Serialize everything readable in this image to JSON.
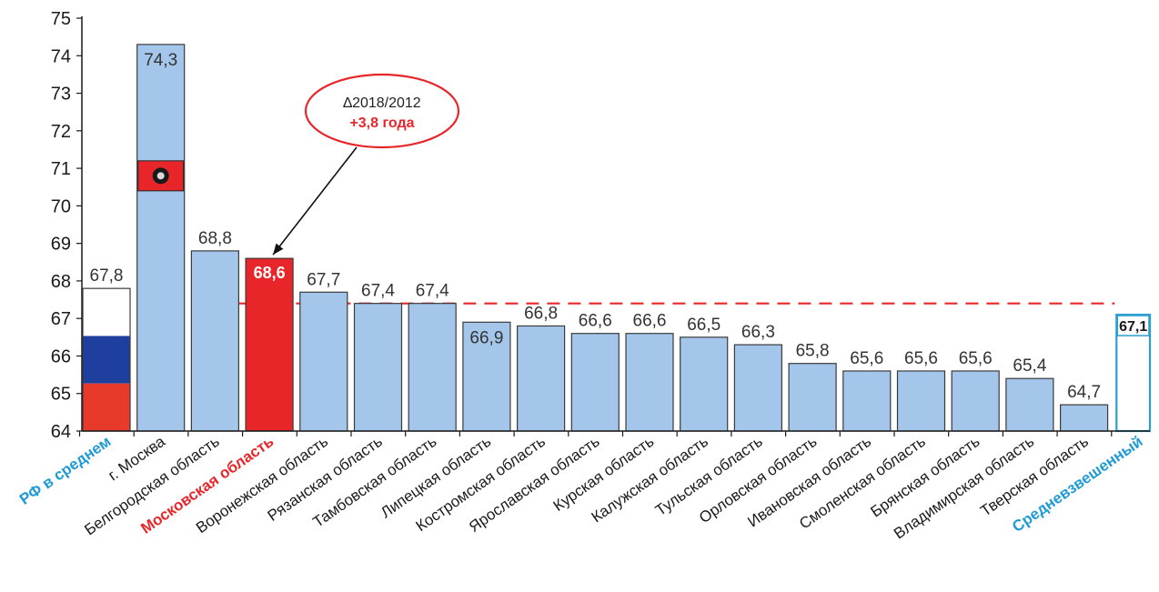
{
  "chart_data": {
    "type": "bar",
    "ylim": [
      64,
      75
    ],
    "yticks": [
      64,
      65,
      66,
      67,
      68,
      69,
      70,
      71,
      72,
      73,
      74,
      75
    ],
    "categories": [
      "РФ в среднем",
      "г. Москва",
      "Белгородская область",
      "Московская область",
      "Воронежская область",
      "Рязанская область",
      "Тамбовская область",
      "Липецкая область",
      "Костромская область",
      "Ярославская область",
      "Курская область",
      "Калужская область",
      "Тульская область",
      "Орловская область",
      "Ивановская область",
      "Смоленская область",
      "Брянская область",
      "Владимирская область",
      "Тверская область",
      "Средневзвешенный"
    ],
    "value_labels": [
      "67,8",
      "74,3",
      "68,8",
      "68,6",
      "67,7",
      "67,4",
      "67,4",
      "66,9",
      "66,8",
      "66,6",
      "66,6",
      "66,5",
      "66,3",
      "65,8",
      "65,6",
      "65,6",
      "65,6",
      "65,4",
      "64,7",
      "67,1"
    ],
    "values": [
      67.8,
      74.3,
      68.8,
      68.6,
      67.7,
      67.4,
      67.4,
      66.9,
      66.8,
      66.6,
      66.6,
      66.5,
      66.3,
      65.8,
      65.6,
      65.6,
      65.6,
      65.4,
      64.7,
      67.1
    ],
    "bar_styles": [
      "flag",
      "moscow",
      "normal",
      "highlight",
      "normal",
      "normal",
      "normal",
      "normal",
      "normal",
      "normal",
      "normal",
      "normal",
      "normal",
      "normal",
      "normal",
      "normal",
      "normal",
      "normal",
      "normal",
      "average"
    ],
    "label_inside": [
      false,
      true,
      false,
      true,
      false,
      false,
      false,
      true,
      false,
      false,
      false,
      false,
      false,
      false,
      false,
      false,
      false,
      false,
      false,
      true
    ],
    "highlight_labels": [
      0,
      3,
      19
    ],
    "reference_line": {
      "value": 67.4
    },
    "annotation": {
      "line1": "∆2018/2012",
      "line2": "+3,8 года",
      "target_index": 3
    },
    "colors": {
      "bar": "#a4c6ea",
      "bar_stroke": "#3a3a3a",
      "highlight": "#e8262a",
      "flag_white": "#ffffff",
      "flag_blue": "#1f3f9e",
      "flag_red": "#e83a2a",
      "average": "#2b9fcf",
      "ref_line": "#e8262a",
      "axis": "#1a1a1a",
      "rf_label": "#1e9ad6",
      "mo_label": "#e8262a"
    },
    "grid": false,
    "legend": "none"
  }
}
